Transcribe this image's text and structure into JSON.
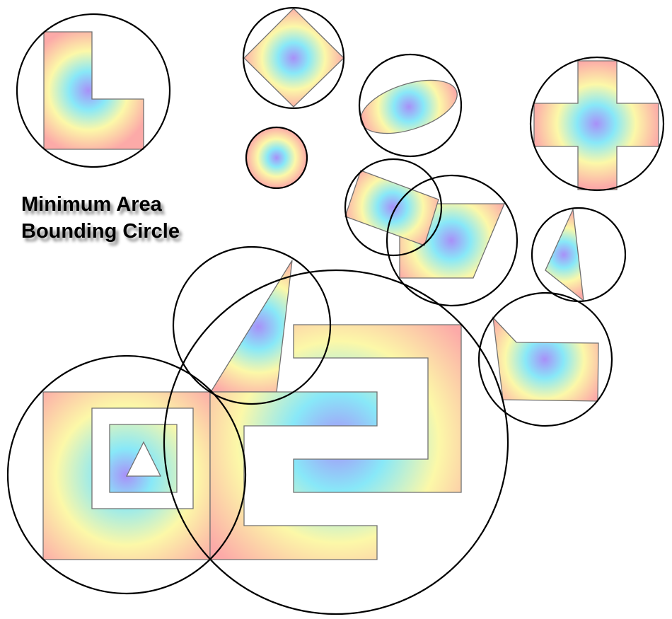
{
  "title": {
    "line1": "Minimum Area",
    "line2": "Bounding Circle"
  },
  "colors": {
    "gradient_center": "#a890f8",
    "gradient_inner": "#88e8f8",
    "gradient_middle": "#fcf8a8",
    "gradient_outer": "#fcaaa8",
    "circle_stroke": "#000000",
    "shape_stroke": "#707070"
  },
  "legend": "none",
  "grid": false
}
